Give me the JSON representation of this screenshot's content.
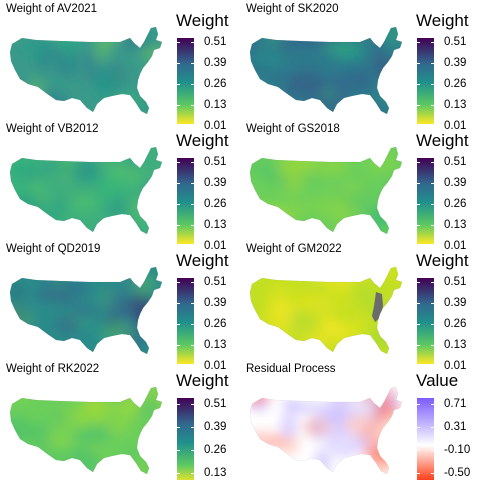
{
  "panels": [
    {
      "title": "Weight of AV2021",
      "legend_title": "Weight",
      "ticks": [
        "0.51",
        "0.39",
        "0.26",
        "0.13",
        "0.01"
      ],
      "palette": "viridis",
      "style": "mixed"
    },
    {
      "title": "Weight of SK2020",
      "legend_title": "Weight",
      "ticks": [
        "0.51",
        "0.39",
        "0.26",
        "0.13",
        "0.01"
      ],
      "palette": "viridis",
      "style": "darkish"
    },
    {
      "title": "Weight of VB2012",
      "legend_title": "Weight",
      "ticks": [
        "0.51",
        "0.39",
        "0.26",
        "0.13",
        "0.01"
      ],
      "palette": "viridis",
      "style": "smooth"
    },
    {
      "title": "Weight of GS2018",
      "legend_title": "Weight",
      "ticks": [
        "0.51",
        "0.39",
        "0.26",
        "0.13",
        "0.01"
      ],
      "palette": "viridis",
      "style": "light"
    },
    {
      "title": "Weight of QD2019",
      "legend_title": "Weight",
      "ticks": [
        "0.51",
        "0.39",
        "0.26",
        "0.13",
        "0.01"
      ],
      "palette": "viridis",
      "style": "darkwest"
    },
    {
      "title": "Weight of GM2022",
      "legend_title": "Weight",
      "ticks": [
        "0.51",
        "0.39",
        "0.26",
        "0.13",
        "0.01"
      ],
      "palette": "viridis",
      "style": "yellow"
    },
    {
      "title": "Weight of RK2022",
      "legend_title": "Weight",
      "ticks": [
        "0.51",
        "0.39",
        "0.26",
        "0.13"
      ],
      "palette": "viridis",
      "style": "light"
    },
    {
      "title": "Residual Process",
      "legend_title": "Value",
      "ticks": [
        "0.71",
        "0.31",
        "-0.10",
        "-0.50"
      ],
      "palette": "diverging",
      "style": "residual"
    }
  ],
  "colors": {
    "viridis_top": "#440154",
    "viridis_upper": "#31688e",
    "viridis_mid": "#21918c",
    "viridis_lower": "#5ec962",
    "viridis_bottom": "#fde725",
    "residual_high": "#7b5cff",
    "residual_zero": "#ffffff",
    "residual_low": "#ff2a00",
    "missing_region": "#6b6b6b"
  }
}
